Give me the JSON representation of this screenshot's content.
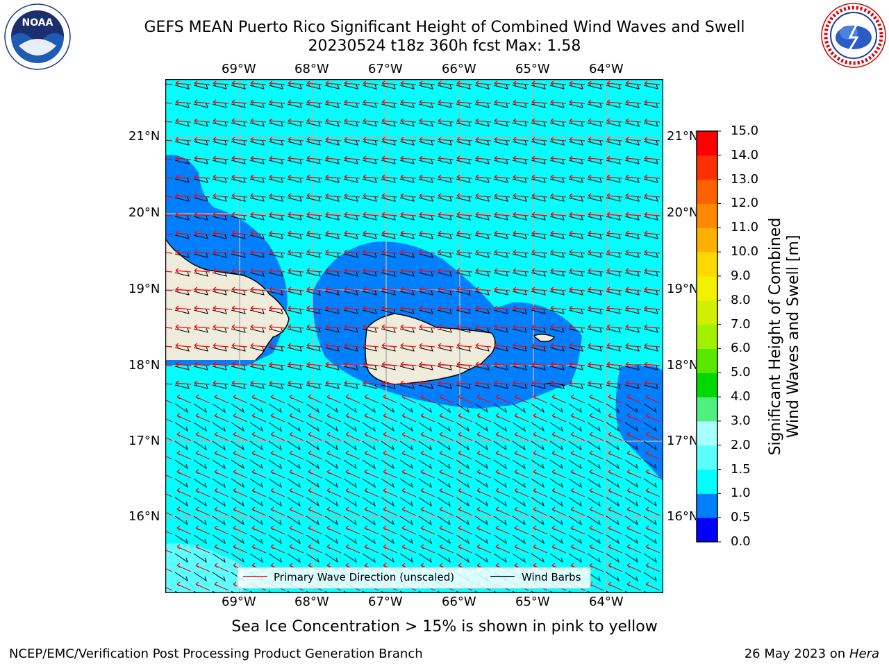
{
  "title": {
    "line1": "GEFS MEAN Puerto Rico Significant Height of Combined Wind Waves and Swell",
    "line2": "20230524 t18z 360h fcst   Max: 1.58"
  },
  "logos": {
    "left": {
      "name": "noaa-logo",
      "text": "NOAA"
    },
    "right": {
      "name": "nws-logo",
      "text": "NATIONAL WEATHER SERVICE"
    }
  },
  "map": {
    "lon_ticks": [
      "69°W",
      "68°W",
      "67°W",
      "66°W",
      "65°W",
      "64°W"
    ],
    "lat_ticks": [
      "21°N",
      "20°N",
      "19°N",
      "18°N",
      "17°N",
      "16°N"
    ],
    "colors": {
      "ocean_main": "#00ffff",
      "ocean_coastal": "#0080ff",
      "ocean_light": "#5cffff",
      "land": "#efecdc",
      "wave_arrow": "#ff0000",
      "wind_barb": "#000000",
      "grid": "#b0b0b0"
    },
    "legend": {
      "wave": "Primary Wave Direction (unscaled)",
      "wind": "Wind Barbs"
    }
  },
  "colorbar": {
    "label_line1": "Significant Height of Combined",
    "label_line2": "Wind Waves and Swell [m]",
    "ticks": [
      "0.0",
      "0.5",
      "1.0",
      "1.5",
      "2.0",
      "3.0",
      "4.0",
      "5.0",
      "6.0",
      "7.0",
      "8.0",
      "9.0",
      "10.0",
      "11.0",
      "12.0",
      "13.0",
      "14.0",
      "15.0"
    ],
    "colors": [
      "#0000ff",
      "#0080ff",
      "#00ffff",
      "#5cffff",
      "#a8ffff",
      "#50f080",
      "#00d800",
      "#58e800",
      "#a0f000",
      "#d0f000",
      "#f0f000",
      "#ffd800",
      "#ffb000",
      "#ff8800",
      "#ff6000",
      "#ff3000",
      "#ff0000"
    ]
  },
  "note": "Sea Ice Concentration > 15% is shown in pink to yellow",
  "footer": {
    "left": "NCEP/EMC/Verification Post Processing Product Generation Branch",
    "date": "26 May 2023 on",
    "host": "Hera"
  }
}
